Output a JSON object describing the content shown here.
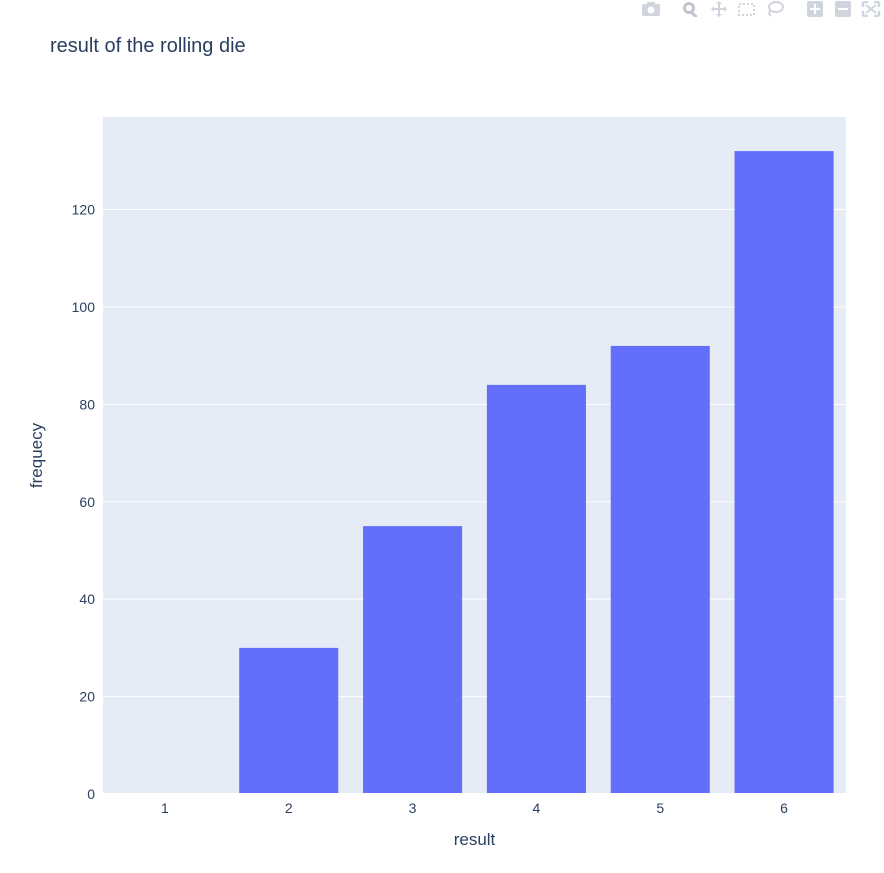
{
  "title": "result of the rolling die",
  "modebar": {
    "buttons": [
      "camera-icon",
      "zoom-icon",
      "pan-icon",
      "box-select-icon",
      "lasso-select-icon",
      "zoom-in-icon",
      "zoom-out-icon",
      "autoscale-icon"
    ]
  },
  "colors": {
    "bar": "#636efa",
    "plot_bg": "#e5ecf6",
    "grid": "#ffffff",
    "text": "#2a3f5f"
  },
  "chart_data": {
    "type": "bar",
    "title": "result of the rolling die",
    "xlabel": "result",
    "ylabel": "frequecy",
    "categories": [
      "1",
      "2",
      "3",
      "4",
      "5",
      "6"
    ],
    "values": [
      0,
      30,
      55,
      84,
      92,
      132
    ],
    "ylim": [
      0,
      139
    ],
    "yticks": [
      0,
      20,
      40,
      60,
      80,
      100,
      120
    ],
    "grid": true,
    "legend": "none"
  }
}
